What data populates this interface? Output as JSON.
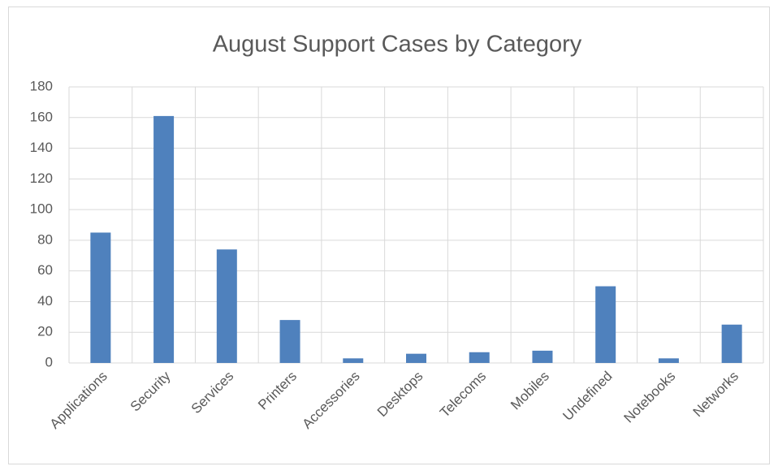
{
  "chart_data": {
    "type": "bar",
    "title": "August Support Cases by Category",
    "categories": [
      "Applications",
      "Security",
      "Services",
      "Printers",
      "Accessories",
      "Desktops",
      "Telecoms",
      "Mobiles",
      "Undefined",
      "Notebooks",
      "Networks"
    ],
    "values": [
      85,
      161,
      74,
      28,
      3,
      6,
      7,
      8,
      50,
      3,
      25
    ],
    "color": "#4f81bd",
    "ylim": [
      0,
      180
    ],
    "yticks": [
      0,
      20,
      40,
      60,
      80,
      100,
      120,
      140,
      160,
      180
    ],
    "grid": true
  }
}
